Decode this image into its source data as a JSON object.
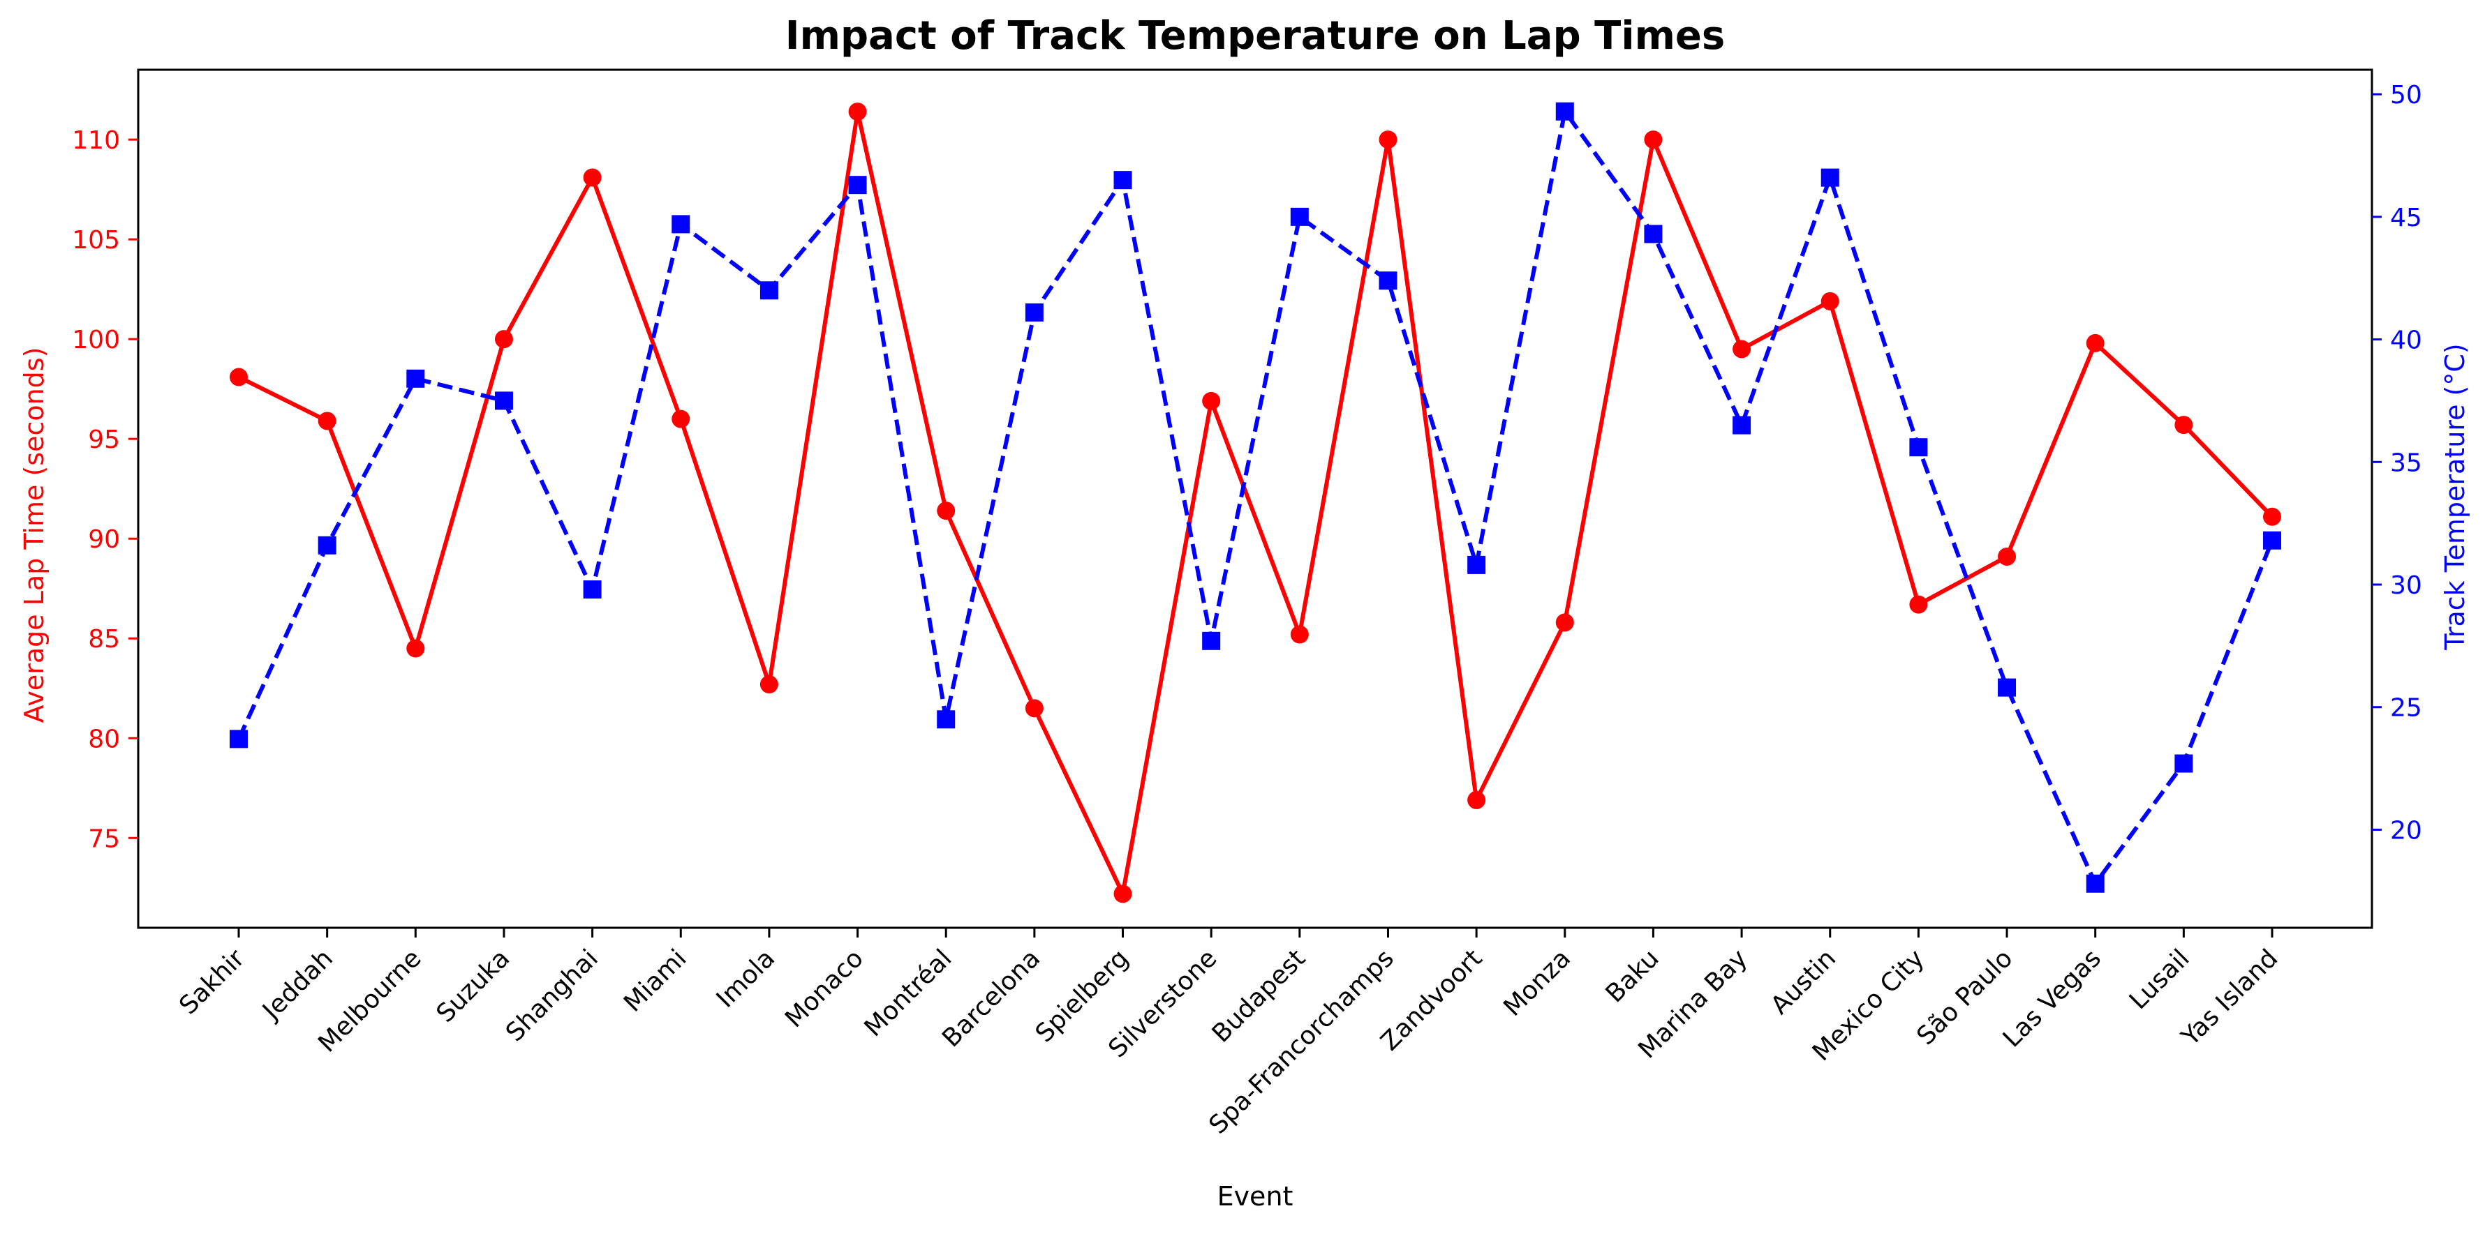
{
  "chart_data": {
    "type": "line",
    "title": "Impact of Track Temperature on Lap Times",
    "xlabel": "Event",
    "categories": [
      "Sakhir",
      "Jeddah",
      "Melbourne",
      "Suzuka",
      "Shanghai",
      "Miami",
      "Imola",
      "Monaco",
      "Montréal",
      "Barcelona",
      "Spielberg",
      "Silverstone",
      "Budapest",
      "Spa-Francorchamps",
      "Zandvoort",
      "Monza",
      "Baku",
      "Marina Bay",
      "Austin",
      "Mexico City",
      "São Paulo",
      "Las Vegas",
      "Lusail",
      "Yas Island"
    ],
    "y_left": {
      "label": "Average Lap Time (seconds)",
      "ylim": [
        70.5,
        113.5
      ],
      "ticks": [
        75,
        80,
        85,
        90,
        95,
        100,
        105,
        110
      ],
      "color": "#ff0000"
    },
    "y_right": {
      "label": "Track Temperature (°C)",
      "ylim": [
        16.0,
        51.0
      ],
      "ticks": [
        20,
        25,
        30,
        35,
        40,
        45,
        50
      ],
      "color": "#0000ff"
    },
    "series": [
      {
        "axis": "left",
        "color": "#ff0000",
        "linestyle": "solid",
        "marker": "circle",
        "values": [
          98.1,
          95.9,
          84.5,
          100.0,
          108.1,
          96.0,
          82.7,
          111.4,
          91.4,
          81.5,
          72.2,
          96.9,
          85.2,
          110.0,
          76.9,
          85.8,
          110.0,
          99.5,
          101.9,
          86.7,
          89.1,
          99.8,
          95.7,
          91.1
        ]
      },
      {
        "axis": "right",
        "color": "#0000ff",
        "linestyle": "dashed",
        "marker": "square",
        "values": [
          23.7,
          31.6,
          38.4,
          37.5,
          29.8,
          44.7,
          42.0,
          46.3,
          24.5,
          41.1,
          46.5,
          27.7,
          45.0,
          42.4,
          30.8,
          49.3,
          44.3,
          36.5,
          46.6,
          35.6,
          25.8,
          17.8,
          22.7,
          31.8
        ]
      }
    ],
    "grid": false
  }
}
